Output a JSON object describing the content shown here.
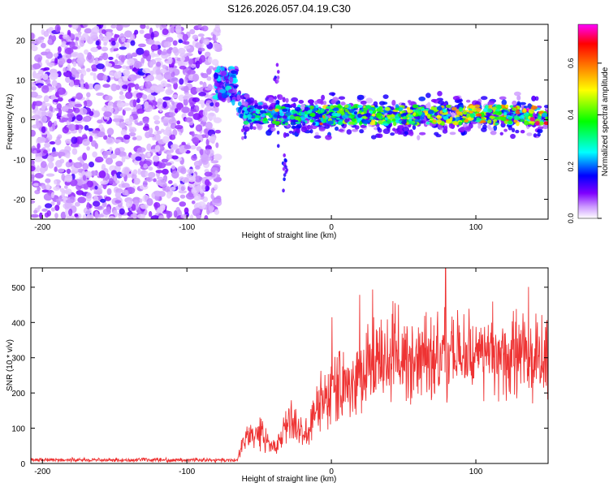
{
  "figure_title": "S126.2026.057.04.19.C30",
  "chart_data": [
    {
      "type": "heatmap",
      "title": "S126.2026.057.04.19.C30",
      "xlabel": "Height of straight line (km)",
      "ylabel": "Frequency (Hz)",
      "xlim": [
        -208,
        150
      ],
      "ylim": [
        -25,
        24
      ],
      "xticks": [
        -200,
        -100,
        0,
        100
      ],
      "yticks": [
        -20,
        -10,
        0,
        10,
        20
      ],
      "colorbar": {
        "label": "Normalized spectral amplitude",
        "range": [
          0.0,
          0.75
        ],
        "ticks": [
          0.0,
          0.2,
          0.4,
          0.6
        ],
        "tick_labels": [
          "0.0",
          "0.2",
          "0.4",
          "0.6"
        ],
        "colormap": [
          "#ffffff",
          "#cc99ff",
          "#7f00ff",
          "#0000ff",
          "#00ffff",
          "#00ff00",
          "#ffff00",
          "#ff8000",
          "#ff0000",
          "#ff00ff"
        ]
      },
      "regions": [
        {
          "name": "noise",
          "x_range": [
            -208,
            -78
          ],
          "freq_range": [
            -25,
            24
          ],
          "level": "0.05-0.15"
        },
        {
          "name": "signal_onset",
          "x_range": [
            -78,
            -68
          ],
          "freq_center": 10,
          "level": "0.2-0.4"
        },
        {
          "name": "signal_band",
          "x_range": [
            -68,
            150
          ],
          "freq_center": 1,
          "freq_halfwidth": 3,
          "level": "0.2-0.75"
        }
      ]
    },
    {
      "type": "line",
      "xlabel": "Height of straight line (km)",
      "ylabel": "SNR (10 * v/v)",
      "xlim": [
        -208,
        150
      ],
      "ylim": [
        0,
        555
      ],
      "xticks": [
        -200,
        -100,
        0,
        100
      ],
      "yticks": [
        0,
        100,
        200,
        300,
        400,
        500
      ],
      "series": [
        {
          "name": "SNR",
          "color": "#ee3333",
          "x": [
            -208,
            -150,
            -100,
            -65,
            -60,
            -50,
            -40,
            -35,
            -30,
            -25,
            -20,
            -15,
            -10,
            0,
            10,
            20,
            30,
            40,
            50,
            60,
            70,
            80,
            90,
            100,
            110,
            120,
            130,
            140,
            150
          ],
          "y": [
            10,
            10,
            10,
            10,
            70,
            90,
            50,
            60,
            120,
            120,
            80,
            100,
            170,
            200,
            230,
            250,
            280,
            290,
            290,
            300,
            300,
            310,
            300,
            305,
            300,
            295,
            300,
            295,
            300
          ],
          "peak": {
            "x": 79,
            "y": 555
          }
        }
      ]
    }
  ]
}
